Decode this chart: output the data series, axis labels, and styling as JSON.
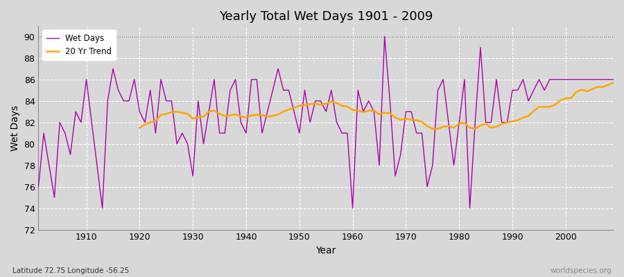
{
  "title": "Yearly Total Wet Days 1901 - 2009",
  "xlabel": "Year",
  "ylabel": "Wet Days",
  "footer_left": "Latitude 72.75 Longitude -56.25",
  "footer_right": "worldspecies.org",
  "line_color": "#aa00aa",
  "trend_color": "#FFA500",
  "background_color": "#d8d8d8",
  "plot_bg_color": "#d8d8d8",
  "ylim": [
    72,
    91
  ],
  "yticks": [
    72,
    74,
    76,
    78,
    80,
    82,
    84,
    86,
    88,
    90
  ],
  "wet_days": [
    76,
    81,
    78,
    75,
    82,
    81,
    79,
    83,
    82,
    86,
    82,
    78,
    74,
    84,
    87,
    85,
    84,
    84,
    86,
    83,
    82,
    85,
    81,
    86,
    84,
    84,
    80,
    81,
    80,
    77,
    84,
    80,
    83,
    86,
    81,
    81,
    85,
    86,
    82,
    81,
    86,
    86,
    81,
    83,
    85,
    87,
    85,
    85,
    83,
    81,
    85,
    82,
    84,
    84,
    83,
    85,
    82,
    81,
    81,
    74,
    85,
    83,
    84,
    83,
    78,
    90,
    84,
    77,
    79,
    83,
    83,
    81,
    81,
    76,
    78,
    85,
    86,
    82,
    78,
    82,
    86,
    74,
    82,
    89,
    82,
    82,
    86,
    82,
    82,
    85,
    85,
    86,
    84,
    85,
    86,
    85,
    86,
    86,
    86,
    86,
    86,
    86,
    86,
    86,
    86,
    86,
    86,
    86,
    86
  ]
}
